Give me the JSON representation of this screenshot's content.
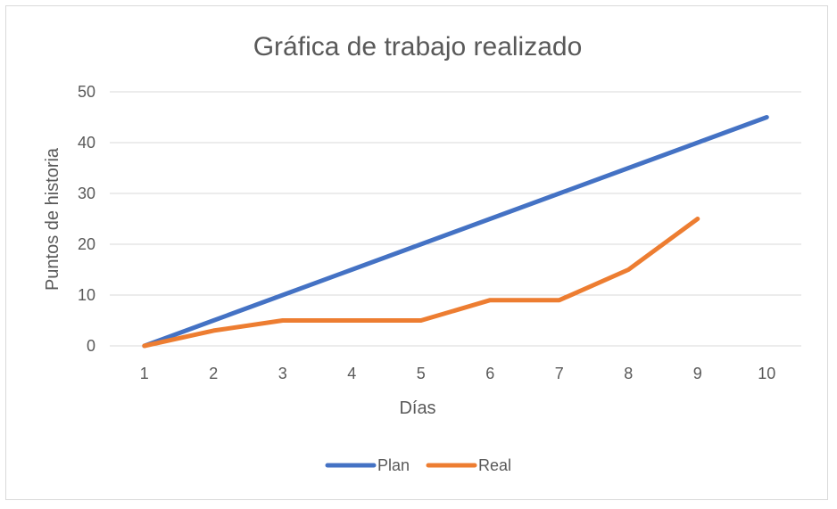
{
  "chart_data": {
    "type": "line",
    "title": "Gráfica de trabajo realizado",
    "xlabel": "Días",
    "ylabel": "Puntos de historia",
    "categories": [
      "1",
      "2",
      "3",
      "4",
      "5",
      "6",
      "7",
      "8",
      "9",
      "10"
    ],
    "ylim": [
      0,
      50
    ],
    "yticks": [
      "0",
      "10",
      "20",
      "30",
      "40",
      "50"
    ],
    "grid": true,
    "legend_position": "bottom",
    "series": [
      {
        "name": "Plan",
        "color": "#4472C4",
        "values": [
          0,
          5,
          10,
          15,
          20,
          25,
          30,
          35,
          40,
          45
        ]
      },
      {
        "name": "Real",
        "color": "#ED7D31",
        "values": [
          0,
          3,
          5,
          5,
          5,
          9,
          9,
          15,
          25,
          null
        ]
      }
    ]
  }
}
